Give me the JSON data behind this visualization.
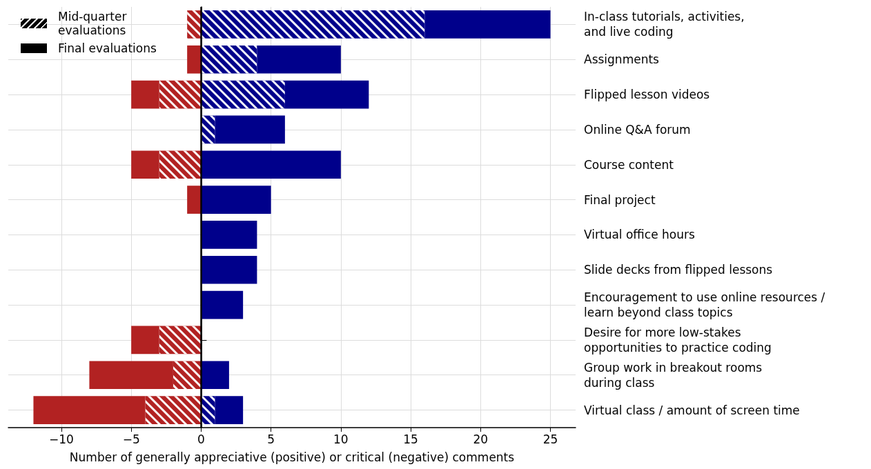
{
  "chart_data": {
    "type": "bar",
    "orientation": "horizontal",
    "stacked": true,
    "xlabel": "Number of generally appreciative (positive) or critical (negative) comments",
    "categories": [
      "In-class tutorials, activities,\nand live coding",
      "Assignments",
      "Flipped lesson videos",
      "Online Q&A forum",
      "Course content",
      "Final project",
      "Virtual office hours",
      "Slide decks from flipped lessons",
      "Encouragement to use online resources /\nlearn beyond class topics",
      "Desire for more low-stakes\nopportunities to practice coding",
      "Group work in breakout rooms\nduring class",
      "Virtual class / amount of screen time"
    ],
    "series": [
      {
        "color": "#00008b",
        "values": [
          16,
          4,
          6,
          1,
          0,
          0,
          0,
          0,
          0,
          0,
          0,
          1
        ]
      },
      {
        "color": "#00008b",
        "values": [
          9,
          6,
          6,
          5,
          10,
          5,
          4,
          4,
          3,
          0,
          2,
          2
        ]
      },
      {
        "color": "#b22222",
        "values": [
          -1,
          0,
          -3,
          0,
          -3,
          0,
          0,
          0,
          0,
          -3,
          -2,
          -4
        ]
      },
      {
        "color": "#b22222",
        "values": [
          0,
          -1,
          -2,
          0,
          -2,
          -1,
          0,
          0,
          0,
          -2,
          -6,
          -8
        ]
      }
    ],
    "annotations": [
      "Mid-quarter\nevaluations",
      "Final evaluations"
    ],
    "xlim": [
      -13.8,
      26.8
    ],
    "xticks": [
      -10,
      -5,
      0,
      5,
      10,
      15,
      20,
      25
    ],
    "ref_lines": [
      {
        "axis": "x",
        "value": 0,
        "color": "#000000"
      }
    ],
    "grid": true
  }
}
